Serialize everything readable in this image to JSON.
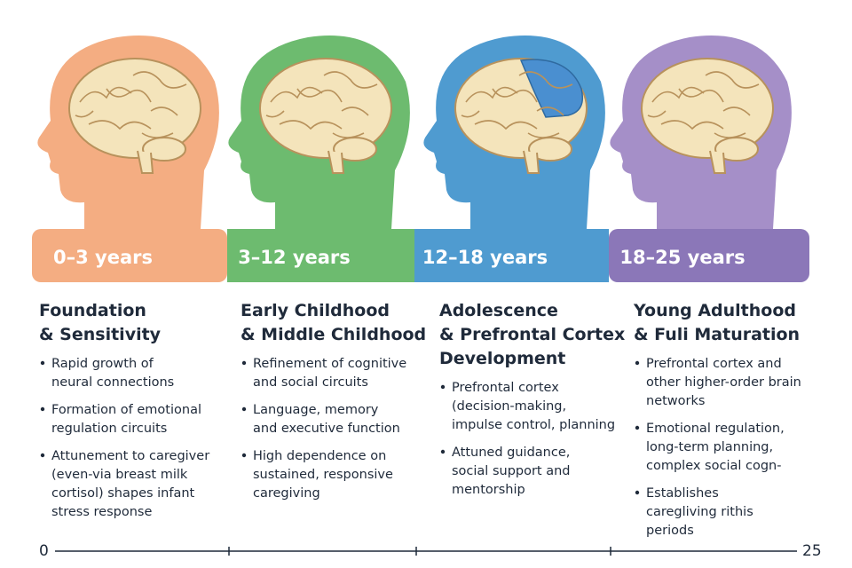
{
  "stages": [
    {
      "age": "0–3 years",
      "title": [
        "Foundation",
        "& Sensitivity"
      ],
      "bullets": [
        [
          "Rapid growth of",
          "neural connections"
        ],
        [
          "Formation of emotional",
          "regulation circuits"
        ],
        [
          "Attunement to caregiver",
          "(even-via breast milk",
          "cortisol) shapes infant",
          "stress response"
        ]
      ]
    },
    {
      "age": "3–12 years",
      "title": [
        "Early Childhood",
        "& Middle Childhood"
      ],
      "bullets": [
        [
          "Refinement of cognitive",
          "and social circuits"
        ],
        [
          "Language, memory",
          "and executive function"
        ],
        [
          "High dependence on",
          "sustained, responsive",
          "caregiving"
        ]
      ]
    },
    {
      "age": "12–18 years",
      "title": [
        "Adolescence",
        "& Prefrontal Cortex",
        "Development"
      ],
      "bullets": [
        [
          "Prefrontal cortex",
          "(decision-making,",
          "impulse control, planning"
        ],
        [
          "Attuned guidance,",
          "social support and",
          "mentorship"
        ]
      ]
    },
    {
      "age": "18–25 years",
      "title": [
        "Young Adulthood",
        "& Fuli Maturation"
      ],
      "bullets": [
        [
          "Prefrontal cortex and",
          "other higher-order brain",
          "networks"
        ],
        [
          "Emotional regulation,",
          "long-term planning,",
          "complex social cogn-"
        ],
        [
          "Establishes",
          "caregliving rithis",
          "periods"
        ]
      ]
    }
  ],
  "timeline": {
    "start": "0",
    "end": "25"
  }
}
